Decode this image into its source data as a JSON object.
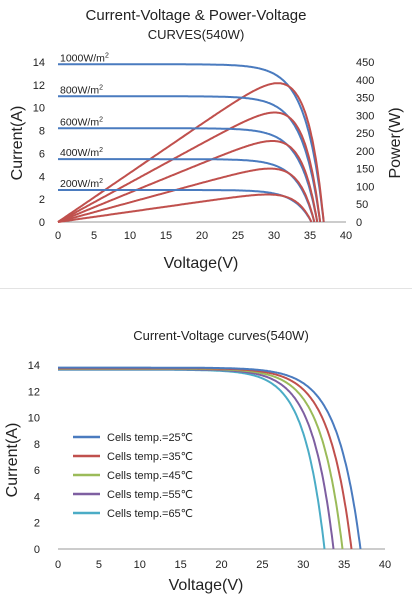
{
  "chart_data": [
    {
      "type": "line",
      "title": "Current-Voltage & Power-Voltage",
      "subtitle": "CURVES(540W)",
      "xlabel": "Voltage(V)",
      "ylabel": "Current(A)",
      "y2label": "Power(W)",
      "xlim": [
        0,
        40
      ],
      "ylim": [
        0,
        14
      ],
      "y2lim": [
        0,
        450
      ],
      "xticks": [
        0,
        5,
        10,
        15,
        20,
        25,
        30,
        35,
        40
      ],
      "yticks": [
        0,
        2,
        4,
        6,
        8,
        10,
        12,
        14
      ],
      "y2ticks": [
        0,
        50,
        100,
        150,
        200,
        250,
        300,
        350,
        400,
        450
      ],
      "grid": false,
      "colors": {
        "current": "#4a7bbf",
        "power": "#c0504d"
      },
      "series": [
        {
          "name": "1000W/m2",
          "label_text": "1000W/m",
          "current_iv": {
            "isc": 13.8,
            "voc": 36.9,
            "vmp": 31.0,
            "imp": 13.2
          },
          "power_peak": 410
        },
        {
          "name": "800W/m2",
          "label_text": "800W/m",
          "current_iv": {
            "isc": 11.0,
            "voc": 36.4,
            "vmp": 30.8,
            "imp": 10.5
          },
          "power_peak": 325
        },
        {
          "name": "600W/m2",
          "label_text": "600W/m",
          "current_iv": {
            "isc": 8.2,
            "voc": 36.0,
            "vmp": 30.5,
            "imp": 7.8
          },
          "power_peak": 240
        },
        {
          "name": "400W/m2",
          "label_text": "400W/m",
          "current_iv": {
            "isc": 5.5,
            "voc": 35.6,
            "vmp": 30.3,
            "imp": 5.2
          },
          "power_peak": 158
        },
        {
          "name": "200W/m2",
          "label_text": "200W/m",
          "current_iv": {
            "isc": 2.8,
            "voc": 35.2,
            "vmp": 30.0,
            "imp": 2.6
          },
          "power_peak": 80
        }
      ],
      "label_superscript": "2"
    },
    {
      "type": "line",
      "title": "Current-Voltage curves(540W)",
      "xlabel": "Voltage(V)",
      "ylabel": "Current(A)",
      "xlim": [
        0,
        40
      ],
      "ylim": [
        0,
        14
      ],
      "xticks": [
        0,
        5,
        10,
        15,
        20,
        25,
        30,
        35,
        40
      ],
      "yticks": [
        0,
        2,
        4,
        6,
        8,
        10,
        12,
        14
      ],
      "grid": false,
      "legend_position": "left-middle",
      "series": [
        {
          "name": "Cells temp.=25℃",
          "color": "#4a7bbf",
          "isc": 13.8,
          "voc": 37.0
        },
        {
          "name": "Cells temp.=35℃",
          "color": "#c0504d",
          "isc": 13.76,
          "voc": 35.9
        },
        {
          "name": "Cells temp.=45℃",
          "color": "#9bbb59",
          "isc": 13.72,
          "voc": 34.8
        },
        {
          "name": "Cells temp.=55℃",
          "color": "#7e5fa1",
          "isc": 13.68,
          "voc": 33.7
        },
        {
          "name": "Cells temp.=65℃",
          "color": "#4bacc6",
          "isc": 13.64,
          "voc": 32.6
        }
      ]
    }
  ]
}
